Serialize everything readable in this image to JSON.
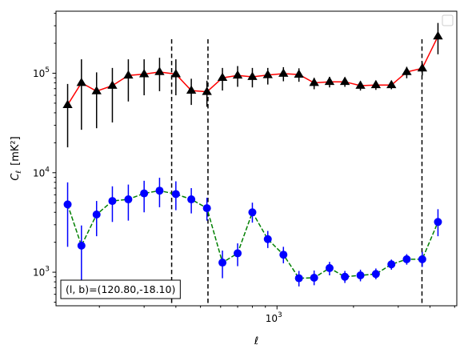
{
  "chart_data": {
    "type": "scatter",
    "title": "",
    "xlabel": "ℓ",
    "ylabel": "C_ℓ [mK²]",
    "xscale": "log",
    "yscale": "log",
    "xlim": [
      135,
      5100
    ],
    "ylim": [
      460,
      420000
    ],
    "grid": false,
    "legend": "top-right (empty)",
    "x_tick_labels": [
      {
        "value": 1000,
        "label": "10",
        "exp": "3"
      }
    ],
    "y_tick_labels": [
      {
        "value": 1000,
        "label": "10",
        "exp": "3"
      },
      {
        "value": 10000,
        "label": "10",
        "exp": "4"
      },
      {
        "value": 100000,
        "label": "10",
        "exp": "5"
      }
    ],
    "vlines": [
      385,
      535,
      3720
    ],
    "annotation": "(l, b)=(120.80,-18.10)",
    "series": [
      {
        "style": "line-triangle",
        "line_color": "#ff0000",
        "marker_color": "#000000",
        "errbar_color": "#000000",
        "points": [
          {
            "x": 150,
            "y": 48000,
            "lo": 18000,
            "hi": 78000
          },
          {
            "x": 170,
            "y": 80000,
            "lo": 27000,
            "hi": 138000
          },
          {
            "x": 195,
            "y": 66000,
            "lo": 28000,
            "hi": 102000
          },
          {
            "x": 225,
            "y": 75000,
            "lo": 32000,
            "hi": 113000
          },
          {
            "x": 260,
            "y": 95000,
            "lo": 52000,
            "hi": 138000
          },
          {
            "x": 300,
            "y": 98000,
            "lo": 60000,
            "hi": 138000
          },
          {
            "x": 345,
            "y": 103000,
            "lo": 66000,
            "hi": 143000
          },
          {
            "x": 400,
            "y": 98000,
            "lo": 60000,
            "hi": 138000
          },
          {
            "x": 460,
            "y": 67000,
            "lo": 48000,
            "hi": 88000
          },
          {
            "x": 530,
            "y": 65000,
            "lo": 46000,
            "hi": 84000
          },
          {
            "x": 610,
            "y": 90000,
            "lo": 67000,
            "hi": 113000
          },
          {
            "x": 700,
            "y": 95000,
            "lo": 73000,
            "hi": 118000
          },
          {
            "x": 800,
            "y": 92000,
            "lo": 72000,
            "hi": 113000
          },
          {
            "x": 920,
            "y": 96000,
            "lo": 77000,
            "hi": 113000
          },
          {
            "x": 1060,
            "y": 99000,
            "lo": 83000,
            "hi": 115000
          },
          {
            "x": 1220,
            "y": 97000,
            "lo": 82000,
            "hi": 112000
          },
          {
            "x": 1400,
            "y": 80000,
            "lo": 69000,
            "hi": 90000
          },
          {
            "x": 1610,
            "y": 82000,
            "lo": 72000,
            "hi": 92000
          },
          {
            "x": 1850,
            "y": 82000,
            "lo": 73000,
            "hi": 91000
          },
          {
            "x": 2130,
            "y": 75000,
            "lo": 67000,
            "hi": 83000
          },
          {
            "x": 2450,
            "y": 76000,
            "lo": 68000,
            "hi": 84000
          },
          {
            "x": 2820,
            "y": 76000,
            "lo": 69000,
            "hi": 83000
          },
          {
            "x": 3240,
            "y": 103000,
            "lo": 89000,
            "hi": 116000
          },
          {
            "x": 3730,
            "y": 112000,
            "lo": 95000,
            "hi": 128000
          },
          {
            "x": 4300,
            "y": 235000,
            "lo": 155000,
            "hi": 320000
          }
        ]
      },
      {
        "style": "dashed-circle",
        "line_color": "#008000",
        "marker_color": "#0000ff",
        "errbar_color": "#0000ff",
        "points": [
          {
            "x": 150,
            "y": 4800,
            "lo": 1800,
            "hi": 8000
          },
          {
            "x": 170,
            "y": 1850,
            "lo": 780,
            "hi": 2950
          },
          {
            "x": 195,
            "y": 3800,
            "lo": 2300,
            "hi": 5200
          },
          {
            "x": 225,
            "y": 5200,
            "lo": 3200,
            "hi": 7300
          },
          {
            "x": 260,
            "y": 5400,
            "lo": 3300,
            "hi": 7600
          },
          {
            "x": 300,
            "y": 6200,
            "lo": 4000,
            "hi": 8300
          },
          {
            "x": 345,
            "y": 6600,
            "lo": 4500,
            "hi": 8900
          },
          {
            "x": 400,
            "y": 6100,
            "lo": 4200,
            "hi": 8200
          },
          {
            "x": 460,
            "y": 5400,
            "lo": 3900,
            "hi": 7000
          },
          {
            "x": 530,
            "y": 4400,
            "lo": 3300,
            "hi": 5600
          },
          {
            "x": 610,
            "y": 1250,
            "lo": 870,
            "hi": 1650
          },
          {
            "x": 700,
            "y": 1550,
            "lo": 1150,
            "hi": 1950
          },
          {
            "x": 800,
            "y": 4000,
            "lo": 3150,
            "hi": 5000
          },
          {
            "x": 920,
            "y": 2150,
            "lo": 1750,
            "hi": 2600
          },
          {
            "x": 1060,
            "y": 1500,
            "lo": 1230,
            "hi": 1800
          },
          {
            "x": 1220,
            "y": 870,
            "lo": 720,
            "hi": 1030
          },
          {
            "x": 1400,
            "y": 880,
            "lo": 740,
            "hi": 1040
          },
          {
            "x": 1610,
            "y": 1100,
            "lo": 930,
            "hi": 1270
          },
          {
            "x": 1850,
            "y": 900,
            "lo": 780,
            "hi": 1030
          },
          {
            "x": 2130,
            "y": 930,
            "lo": 810,
            "hi": 1060
          },
          {
            "x": 2450,
            "y": 960,
            "lo": 850,
            "hi": 1090
          },
          {
            "x": 2820,
            "y": 1200,
            "lo": 1060,
            "hi": 1340
          },
          {
            "x": 3240,
            "y": 1350,
            "lo": 1190,
            "hi": 1520
          },
          {
            "x": 3730,
            "y": 1350,
            "lo": 1130,
            "hi": 1600
          },
          {
            "x": 4300,
            "y": 3200,
            "lo": 2300,
            "hi": 4300
          }
        ]
      }
    ]
  }
}
